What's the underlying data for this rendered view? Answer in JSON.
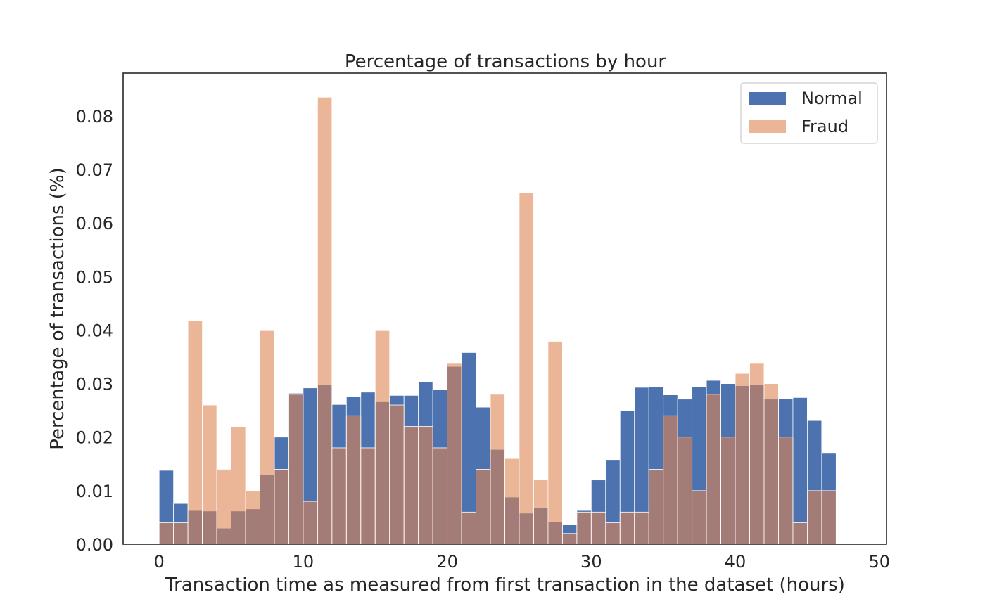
{
  "chart_data": {
    "type": "bar",
    "title": "Percentage of transactions by hour",
    "xlabel": "Transaction time as measured from first transaction in the dataset (hours)",
    "ylabel": "Percentage of transactions (%)",
    "xlim": [
      -2.5,
      50.5
    ],
    "ylim": [
      0,
      0.088
    ],
    "xticks": [
      "0",
      "10",
      "20",
      "30",
      "40",
      "50"
    ],
    "yticks": [
      "0.00",
      "0.01",
      "0.02",
      "0.03",
      "0.04",
      "0.05",
      "0.06",
      "0.07",
      "0.08"
    ],
    "legend_position": "top-right",
    "grid": false,
    "bin_edges_hours": [
      0,
      48
    ],
    "bin_count": 48,
    "series": [
      {
        "name": "Normal",
        "color": "#4c72b0",
        "values": [
          0.0138,
          0.0076,
          0.0063,
          0.0062,
          0.003,
          0.0062,
          0.0066,
          0.013,
          0.02,
          0.0282,
          0.0292,
          0.0298,
          0.0261,
          0.0276,
          0.0284,
          0.0266,
          0.0278,
          0.0278,
          0.0303,
          0.0289,
          0.0332,
          0.0358,
          0.0256,
          0.0177,
          0.0088,
          0.0058,
          0.0068,
          0.0042,
          0.0037,
          0.0063,
          0.012,
          0.0158,
          0.025,
          0.0293,
          0.0294,
          0.0279,
          0.0271,
          0.0294,
          0.0306,
          0.03,
          0.0296,
          0.0298,
          0.0271,
          0.0272,
          0.0274,
          0.0231,
          0.0171,
          0.0
        ]
      },
      {
        "name": "Fraud",
        "color": "#dd8452",
        "values": [
          0.004,
          0.004,
          0.0417,
          0.026,
          0.014,
          0.0219,
          0.0099,
          0.0399,
          0.014,
          0.028,
          0.008,
          0.0835,
          0.018,
          0.024,
          0.018,
          0.0399,
          0.026,
          0.022,
          0.022,
          0.018,
          0.0339,
          0.006,
          0.014,
          0.028,
          0.016,
          0.0656,
          0.012,
          0.0379,
          0.002,
          0.006,
          0.006,
          0.004,
          0.006,
          0.006,
          0.014,
          0.024,
          0.02,
          0.01,
          0.028,
          0.02,
          0.0319,
          0.0339,
          0.03,
          0.02,
          0.004,
          0.01,
          0.01,
          0.0
        ]
      }
    ]
  }
}
